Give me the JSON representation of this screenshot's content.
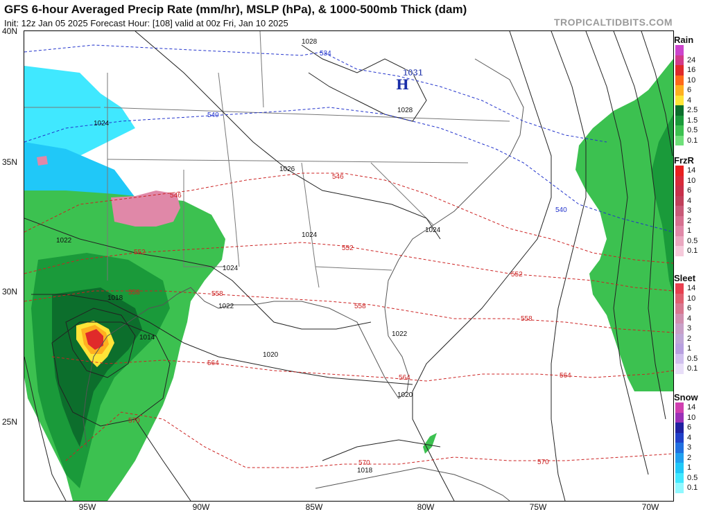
{
  "header": {
    "title": "GFS 6-hour Averaged Precip Rate (mm/hr), MSLP (hPa), & 1000-500mb Thick (dam)",
    "subtitle": "Init: 12z Jan 05 2025   Forecast Hour: [108]   valid at 00z Fri, Jan 10 2025",
    "brand": "TROPICALTIDBITS.COM"
  },
  "axes": {
    "lat_labels": [
      "40N",
      "35N",
      "30N",
      "25N"
    ],
    "lon_labels": [
      "95W",
      "90W",
      "85W",
      "80W",
      "75W",
      "70W"
    ]
  },
  "map": {
    "high_center": {
      "pressure": "1031",
      "letter": "H"
    },
    "isobar_labels": [
      "1028",
      "1028",
      "1024",
      "1026",
      "1024",
      "1024",
      "1024",
      "1022",
      "1022",
      "1018",
      "1014",
      "1020",
      "1022",
      "1020",
      "1018"
    ],
    "thickness_labels_blue": [
      "534",
      "540",
      "540"
    ],
    "thickness_labels_red": [
      "546",
      "546",
      "552",
      "552",
      "552",
      "558",
      "558",
      "558",
      "558",
      "564",
      "564",
      "564",
      "570",
      "570",
      "570"
    ]
  },
  "legends": [
    {
      "title": "Rain",
      "items": [
        {
          "label": "",
          "color": "#cc44cc"
        },
        {
          "label": "24",
          "color": "#d23a8a"
        },
        {
          "label": "16",
          "color": "#e02a2a"
        },
        {
          "label": "10",
          "color": "#ff6a1a"
        },
        {
          "label": "6",
          "color": "#ffb020"
        },
        {
          "label": "4",
          "color": "#ffe438"
        },
        {
          "label": "2.5",
          "color": "#0c6e2c"
        },
        {
          "label": "1.5",
          "color": "#1a9a3a"
        },
        {
          "label": "0.5",
          "color": "#3cc150"
        },
        {
          "label": "0.1",
          "color": "#6fe07a"
        }
      ]
    },
    {
      "title": "FrzR",
      "items": [
        {
          "label": "14",
          "color": "#e82020"
        },
        {
          "label": "10",
          "color": "#d82a3a"
        },
        {
          "label": "6",
          "color": "#c8304a"
        },
        {
          "label": "4",
          "color": "#c0405a"
        },
        {
          "label": "3",
          "color": "#c85a78"
        },
        {
          "label": "2",
          "color": "#d67090"
        },
        {
          "label": "1",
          "color": "#e088a8"
        },
        {
          "label": "0.5",
          "color": "#eaa8c0"
        },
        {
          "label": "0.1",
          "color": "#f5cadb"
        }
      ]
    },
    {
      "title": "Sleet",
      "items": [
        {
          "label": "14",
          "color": "#e84050"
        },
        {
          "label": "10",
          "color": "#e06070"
        },
        {
          "label": "6",
          "color": "#d87890"
        },
        {
          "label": "4",
          "color": "#d090b0"
        },
        {
          "label": "3",
          "color": "#c8a0c8"
        },
        {
          "label": "2",
          "color": "#c0a8d8"
        },
        {
          "label": "1",
          "color": "#b8a0e0"
        },
        {
          "label": "0.5",
          "color": "#d0c0ee"
        },
        {
          "label": "0.1",
          "color": "#e8def8"
        }
      ]
    },
    {
      "title": "Snow",
      "items": [
        {
          "label": "14",
          "color": "#d040b0"
        },
        {
          "label": "10",
          "color": "#9a30b8"
        },
        {
          "label": "6",
          "color": "#2020a0"
        },
        {
          "label": "4",
          "color": "#2040c8"
        },
        {
          "label": "3",
          "color": "#2070e0"
        },
        {
          "label": "2",
          "color": "#20a0f0"
        },
        {
          "label": "1",
          "color": "#20c8f8"
        },
        {
          "label": "0.5",
          "color": "#40e8ff"
        },
        {
          "label": "0.1",
          "color": "#90f8ff"
        }
      ]
    }
  ],
  "colors": {
    "isobar": "#222222",
    "thickness_cold": "#2233cc",
    "thickness_warm": "#cc2222",
    "high_label": "#1a2ea8",
    "borders": "#777777"
  }
}
